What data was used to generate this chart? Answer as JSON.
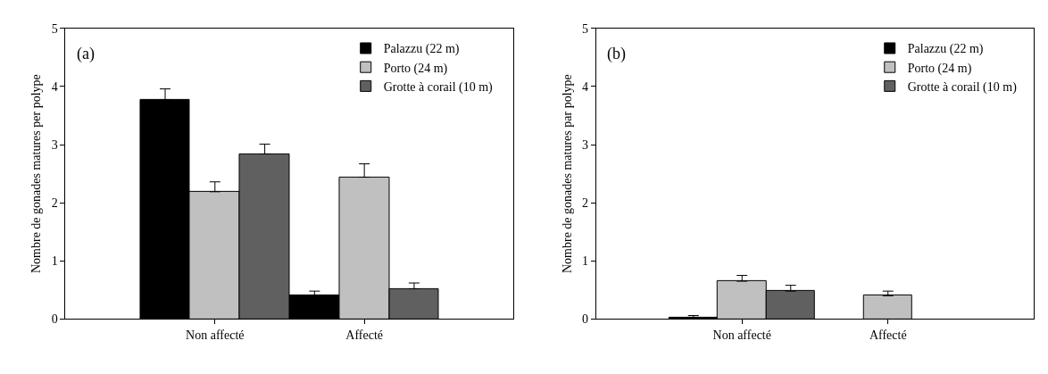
{
  "chart_data": [
    {
      "type": "bar",
      "title": "(a)",
      "ylabel": "Nombre de gonades matures per polype",
      "categories": [
        "Non affecté",
        "Affecté"
      ],
      "ylim": [
        0,
        5
      ],
      "yticks": [
        0,
        1,
        2,
        3,
        4,
        5
      ],
      "legend": "top right",
      "series": [
        {
          "name": "Palazzu (22 m)",
          "color": "#000000",
          "values": [
            3.77,
            0.4
          ],
          "errors": [
            0.19,
            0.08
          ]
        },
        {
          "name": "Porto (24 m)",
          "color": "#c0c0c0",
          "values": [
            2.19,
            2.44
          ],
          "errors": [
            0.17,
            0.23
          ]
        },
        {
          "name": "Grotte à corail (10 m)",
          "color": "#606060",
          "values": [
            2.84,
            0.52
          ],
          "errors": [
            0.17,
            0.1
          ]
        }
      ]
    },
    {
      "type": "bar",
      "title": "(b)",
      "ylabel": "Nombre de gonades matures par polype",
      "categories": [
        "Non affecté",
        "Affecté"
      ],
      "ylim": [
        0,
        5
      ],
      "yticks": [
        0,
        1,
        2,
        3,
        4,
        5
      ],
      "legend": "top right",
      "series": [
        {
          "name": "Palazzu (22 m)",
          "color": "#000000",
          "values": [
            0.03,
            null
          ],
          "errors": [
            0.03,
            null
          ]
        },
        {
          "name": "Porto (24 m)",
          "color": "#c0c0c0",
          "values": [
            0.65,
            0.4
          ],
          "errors": [
            0.1,
            0.08
          ]
        },
        {
          "name": "Grotte à corail (10 m)",
          "color": "#606060",
          "values": [
            0.48,
            null
          ],
          "errors": [
            0.1,
            null
          ]
        }
      ]
    }
  ]
}
